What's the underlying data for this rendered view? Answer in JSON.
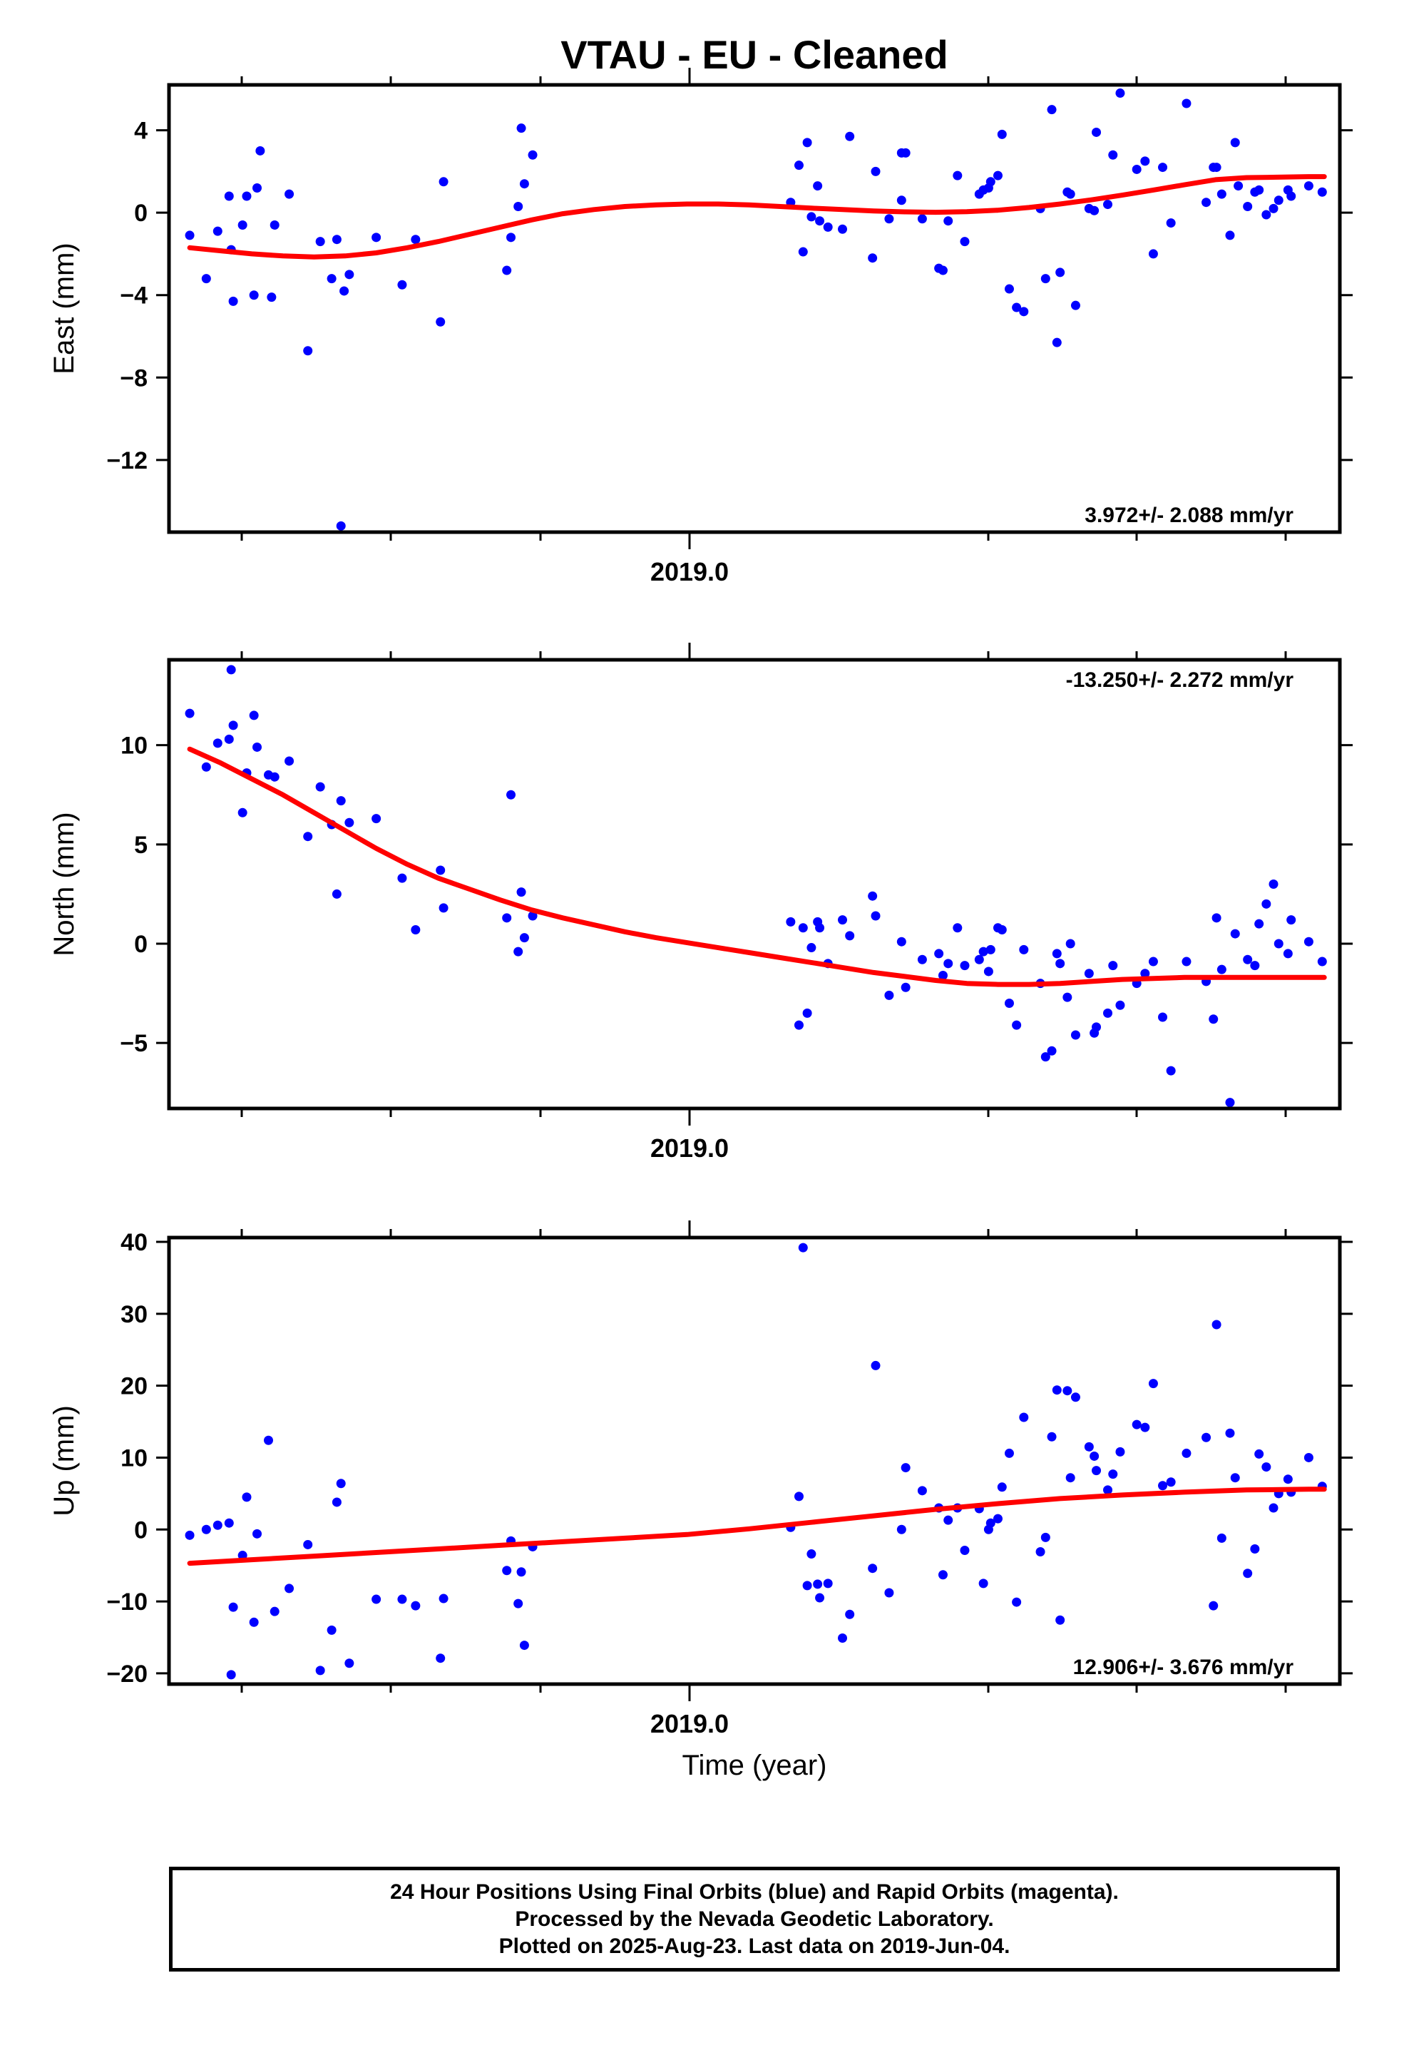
{
  "title": "VTAU  - EU - Cleaned",
  "xlabel": "Time (year)",
  "footer": {
    "line1": "24 Hour Positions Using Final Orbits (blue) and Rapid Orbits (magenta).",
    "line2": "Processed by the Nevada Geodetic Laboratory.",
    "line3": "Plotted on 2025-Aug-23. Last data on 2019-Jun-04."
  },
  "colors": {
    "points": "#0000ff",
    "fit": "#ff0000",
    "axes": "#000000"
  },
  "chart_data": [
    {
      "type": "scatter",
      "name": "east",
      "ylabel": "East (mm)",
      "xlim": [
        2018.42,
        2019.55
      ],
      "ylim": [
        -15.5,
        6.2
      ],
      "yticks": [
        4,
        0,
        -4,
        -8,
        -12
      ],
      "xtick_label": "2019.0",
      "rate_label": "3.972+/- 2.088 mm/yr",
      "rate_position": "bottom-right",
      "x": [
        2018.44,
        2018.456,
        2018.467,
        2018.478,
        2018.48,
        2018.482,
        2018.491,
        2018.495,
        2018.502,
        2018.505,
        2018.508,
        2018.519,
        2018.522,
        2018.536,
        2018.554,
        2018.566,
        2018.577,
        2018.582,
        2018.586,
        2018.589,
        2018.594,
        2018.62,
        2018.645,
        2018.658,
        2018.682,
        2018.685,
        2018.746,
        2018.75,
        2018.757,
        2018.76,
        2018.763,
        2018.771,
        2019.02,
        2019.028,
        2019.032,
        2019.036,
        2019.04,
        2019.046,
        2019.048,
        2019.056,
        2019.07,
        2019.077,
        2019.099,
        2019.102,
        2019.115,
        2019.127,
        2019.127,
        2019.131,
        2019.147,
        2019.163,
        2019.167,
        2019.172,
        2019.181,
        2019.188,
        2019.202,
        2019.206,
        2019.211,
        2019.213,
        2019.22,
        2019.224,
        2019.231,
        2019.238,
        2019.245,
        2019.261,
        2019.266,
        2019.272,
        2019.277,
        2019.28,
        2019.287,
        2019.29,
        2019.295,
        2019.308,
        2019.313,
        2019.315,
        2019.326,
        2019.331,
        2019.338,
        2019.354,
        2019.362,
        2019.37,
        2019.379,
        2019.387,
        2019.402,
        2019.421,
        2019.428,
        2019.431,
        2019.436,
        2019.444,
        2019.449,
        2019.452,
        2019.461,
        2019.468,
        2019.472,
        2019.479,
        2019.486,
        2019.491,
        2019.5,
        2019.503,
        2019.52,
        2019.533
      ],
      "y": [
        -1.1,
        -3.2,
        -0.9,
        0.8,
        -1.8,
        -4.3,
        -0.6,
        0.8,
        -4.0,
        1.2,
        3.0,
        -4.1,
        -0.6,
        0.9,
        -6.7,
        -1.4,
        -3.2,
        -1.3,
        -15.2,
        -3.8,
        -3.0,
        -1.2,
        -3.5,
        -1.3,
        -5.3,
        1.5,
        -2.8,
        -1.2,
        0.3,
        4.1,
        1.4,
        2.8,
        0.5,
        2.3,
        -1.9,
        3.4,
        -0.2,
        1.3,
        -0.4,
        -0.7,
        -0.8,
        3.7,
        -2.2,
        2.0,
        -0.3,
        2.9,
        0.6,
        2.9,
        -0.3,
        -2.7,
        -2.8,
        -0.4,
        1.8,
        -1.4,
        0.9,
        1.1,
        1.2,
        1.5,
        1.8,
        3.8,
        -3.7,
        -4.6,
        -4.8,
        0.2,
        -3.2,
        5.0,
        -6.3,
        -2.9,
        1.0,
        0.9,
        -4.5,
        0.2,
        0.1,
        3.9,
        0.4,
        2.8,
        5.8,
        2.1,
        2.5,
        -2.0,
        2.2,
        -0.5,
        5.3,
        0.5,
        2.2,
        2.2,
        0.9,
        -1.1,
        3.4,
        1.3,
        0.3,
        1.0,
        1.1,
        -0.1,
        0.2,
        0.6,
        1.1,
        0.8,
        1.3,
        1.0
      ],
      "fit_x": [
        2018.44,
        2018.47,
        2018.5,
        2018.53,
        2018.56,
        2018.59,
        2018.62,
        2018.65,
        2018.68,
        2018.71,
        2018.74,
        2018.77,
        2018.8,
        2018.83,
        2018.86,
        2018.89,
        2018.92,
        2018.95,
        2018.98,
        2019.01,
        2019.04,
        2019.07,
        2019.1,
        2019.13,
        2019.16,
        2019.19,
        2019.22,
        2019.25,
        2019.28,
        2019.31,
        2019.34,
        2019.37,
        2019.4,
        2019.43,
        2019.46,
        2019.49,
        2019.52,
        2019.535
      ],
      "fit_y": [
        -1.7,
        -1.85,
        -2.0,
        -2.1,
        -2.15,
        -2.1,
        -1.95,
        -1.7,
        -1.4,
        -1.05,
        -0.7,
        -0.35,
        -0.05,
        0.15,
        0.3,
        0.38,
        0.42,
        0.42,
        0.38,
        0.3,
        0.22,
        0.15,
        0.08,
        0.04,
        0.02,
        0.05,
        0.12,
        0.25,
        0.42,
        0.62,
        0.85,
        1.1,
        1.35,
        1.6,
        1.7,
        1.72,
        1.75,
        1.75
      ]
    },
    {
      "type": "scatter",
      "name": "north",
      "ylabel": "North (mm)",
      "xlim": [
        2018.42,
        2019.55
      ],
      "ylim": [
        -8.3,
        14.3
      ],
      "yticks": [
        10,
        5,
        0,
        -5
      ],
      "xtick_label": "2019.0",
      "rate_label": "-13.250+/- 2.272 mm/yr",
      "rate_position": "top-right",
      "x": [
        2018.44,
        2018.456,
        2018.467,
        2018.478,
        2018.48,
        2018.482,
        2018.491,
        2018.495,
        2018.502,
        2018.505,
        2018.516,
        2018.522,
        2018.536,
        2018.554,
        2018.566,
        2018.577,
        2018.582,
        2018.586,
        2018.594,
        2018.62,
        2018.645,
        2018.658,
        2018.682,
        2018.685,
        2018.746,
        2018.75,
        2018.757,
        2018.76,
        2018.763,
        2018.771,
        2019.02,
        2019.028,
        2019.032,
        2019.036,
        2019.04,
        2019.046,
        2019.048,
        2019.056,
        2019.07,
        2019.077,
        2019.099,
        2019.102,
        2019.115,
        2019.127,
        2019.131,
        2019.147,
        2019.163,
        2019.167,
        2019.172,
        2019.181,
        2019.188,
        2019.202,
        2019.206,
        2019.211,
        2019.213,
        2019.22,
        2019.224,
        2019.231,
        2019.238,
        2019.245,
        2019.261,
        2019.266,
        2019.272,
        2019.277,
        2019.28,
        2019.287,
        2019.29,
        2019.295,
        2019.308,
        2019.313,
        2019.315,
        2019.326,
        2019.331,
        2019.338,
        2019.354,
        2019.362,
        2019.37,
        2019.379,
        2019.387,
        2019.402,
        2019.421,
        2019.428,
        2019.431,
        2019.436,
        2019.444,
        2019.449,
        2019.461,
        2019.468,
        2019.472,
        2019.479,
        2019.486,
        2019.491,
        2019.5,
        2019.503,
        2019.52,
        2019.533
      ],
      "y": [
        11.6,
        8.9,
        10.1,
        10.3,
        13.8,
        11.0,
        6.6,
        8.6,
        11.5,
        9.9,
        8.5,
        8.4,
        9.2,
        5.4,
        7.9,
        6.0,
        2.5,
        7.2,
        6.1,
        6.3,
        3.3,
        0.7,
        3.7,
        1.8,
        1.3,
        7.5,
        -0.4,
        2.6,
        0.3,
        1.4,
        1.1,
        -4.1,
        0.8,
        -3.5,
        -0.2,
        1.1,
        0.8,
        -1.0,
        1.2,
        0.4,
        2.4,
        1.4,
        -2.6,
        0.1,
        -2.2,
        -0.8,
        -0.5,
        -1.6,
        -1.0,
        0.8,
        -1.1,
        -0.8,
        -0.4,
        -1.4,
        -0.3,
        0.8,
        0.7,
        -3.0,
        -4.1,
        -0.3,
        -2.0,
        -5.7,
        -5.4,
        -0.5,
        -1.0,
        -2.7,
        0.0,
        -4.6,
        -1.5,
        -4.5,
        -4.2,
        -3.5,
        -1.1,
        -3.1,
        -2.0,
        -1.5,
        -0.9,
        -3.7,
        -6.4,
        -0.9,
        -1.9,
        -3.8,
        1.3,
        -1.3,
        -8.0,
        0.5,
        -0.8,
        -1.1,
        1.0,
        2.0,
        3.0,
        0.0,
        -0.5,
        1.2,
        0.1,
        -0.9
      ],
      "fit_x": [
        2018.44,
        2018.47,
        2018.5,
        2018.53,
        2018.56,
        2018.59,
        2018.62,
        2018.65,
        2018.68,
        2018.71,
        2018.74,
        2018.77,
        2018.8,
        2018.83,
        2018.86,
        2018.89,
        2018.92,
        2018.95,
        2018.98,
        2019.01,
        2019.04,
        2019.07,
        2019.1,
        2019.13,
        2019.16,
        2019.19,
        2019.22,
        2019.25,
        2019.28,
        2019.31,
        2019.34,
        2019.37,
        2019.4,
        2019.43,
        2019.46,
        2019.49,
        2019.52,
        2019.535
      ],
      "fit_y": [
        9.8,
        9.1,
        8.3,
        7.5,
        6.6,
        5.7,
        4.8,
        4.0,
        3.3,
        2.75,
        2.2,
        1.7,
        1.3,
        0.95,
        0.6,
        0.3,
        0.05,
        -0.2,
        -0.45,
        -0.7,
        -0.95,
        -1.2,
        -1.45,
        -1.65,
        -1.85,
        -2.0,
        -2.05,
        -2.05,
        -2.0,
        -1.9,
        -1.8,
        -1.75,
        -1.7,
        -1.7,
        -1.7,
        -1.7,
        -1.7,
        -1.7
      ]
    },
    {
      "type": "scatter",
      "name": "up",
      "ylabel": "Up (mm)",
      "xlim": [
        2018.42,
        2019.55
      ],
      "ylim": [
        -21.5,
        40.6
      ],
      "yticks": [
        40,
        30,
        20,
        10,
        0,
        -10,
        -20
      ],
      "xtick_label": "2019.0",
      "rate_label": "12.906+/- 3.676 mm/yr",
      "rate_position": "bottom-right",
      "x": [
        2018.44,
        2018.456,
        2018.467,
        2018.478,
        2018.48,
        2018.482,
        2018.491,
        2018.495,
        2018.502,
        2018.505,
        2018.516,
        2018.522,
        2018.536,
        2018.554,
        2018.566,
        2018.577,
        2018.582,
        2018.586,
        2018.594,
        2018.62,
        2018.645,
        2018.658,
        2018.682,
        2018.685,
        2018.746,
        2018.75,
        2018.757,
        2018.76,
        2018.763,
        2018.771,
        2019.02,
        2019.028,
        2019.032,
        2019.036,
        2019.04,
        2019.046,
        2019.048,
        2019.056,
        2019.07,
        2019.077,
        2019.099,
        2019.102,
        2019.115,
        2019.127,
        2019.131,
        2019.147,
        2019.163,
        2019.167,
        2019.172,
        2019.181,
        2019.188,
        2019.202,
        2019.206,
        2019.211,
        2019.213,
        2019.22,
        2019.224,
        2019.231,
        2019.238,
        2019.245,
        2019.261,
        2019.266,
        2019.272,
        2019.277,
        2019.28,
        2019.287,
        2019.29,
        2019.295,
        2019.308,
        2019.313,
        2019.315,
        2019.326,
        2019.331,
        2019.338,
        2019.354,
        2019.362,
        2019.37,
        2019.379,
        2019.387,
        2019.402,
        2019.421,
        2019.428,
        2019.431,
        2019.436,
        2019.444,
        2019.449,
        2019.461,
        2019.468,
        2019.472,
        2019.479,
        2019.486,
        2019.491,
        2019.5,
        2019.503,
        2019.52,
        2019.533
      ],
      "y": [
        -0.8,
        0.0,
        0.6,
        0.9,
        -20.2,
        -10.8,
        -3.6,
        4.5,
        -12.9,
        -0.6,
        12.4,
        -11.4,
        -8.2,
        -2.1,
        -19.6,
        -14.0,
        3.8,
        6.4,
        -18.6,
        -9.7,
        -9.7,
        -10.6,
        -17.9,
        -9.6,
        -5.7,
        -1.6,
        -10.3,
        -5.9,
        -16.1,
        -2.4,
        0.3,
        4.6,
        39.2,
        -7.8,
        -3.4,
        -7.6,
        -9.5,
        -7.5,
        -15.1,
        -11.8,
        -5.4,
        22.8,
        -8.8,
        0.0,
        8.6,
        5.4,
        3.0,
        -6.3,
        1.3,
        3.0,
        -2.9,
        2.9,
        -7.5,
        0.0,
        0.9,
        1.5,
        5.9,
        10.6,
        -10.1,
        15.6,
        -3.1,
        -1.1,
        12.9,
        19.4,
        -12.6,
        19.3,
        7.2,
        18.4,
        11.5,
        10.2,
        8.2,
        5.5,
        7.7,
        10.8,
        14.6,
        14.2,
        20.3,
        6.1,
        6.6,
        10.6,
        12.8,
        -10.6,
        28.5,
        -1.2,
        13.4,
        7.2,
        -6.1,
        -2.7,
        10.5,
        8.7,
        3.0,
        5.0,
        7.0,
        5.2,
        10.0,
        6.0
      ],
      "fit_x": [
        2018.44,
        2018.5,
        2018.56,
        2018.62,
        2018.68,
        2018.74,
        2018.8,
        2018.86,
        2018.92,
        2018.98,
        2019.04,
        2019.1,
        2019.16,
        2019.22,
        2019.28,
        2019.34,
        2019.4,
        2019.46,
        2019.52,
        2019.535
      ],
      "fit_y": [
        -4.7,
        -4.2,
        -3.7,
        -3.2,
        -2.7,
        -2.2,
        -1.7,
        -1.2,
        -0.7,
        0.1,
        1.0,
        1.9,
        2.8,
        3.6,
        4.3,
        4.8,
        5.2,
        5.5,
        5.6,
        5.6
      ]
    }
  ]
}
